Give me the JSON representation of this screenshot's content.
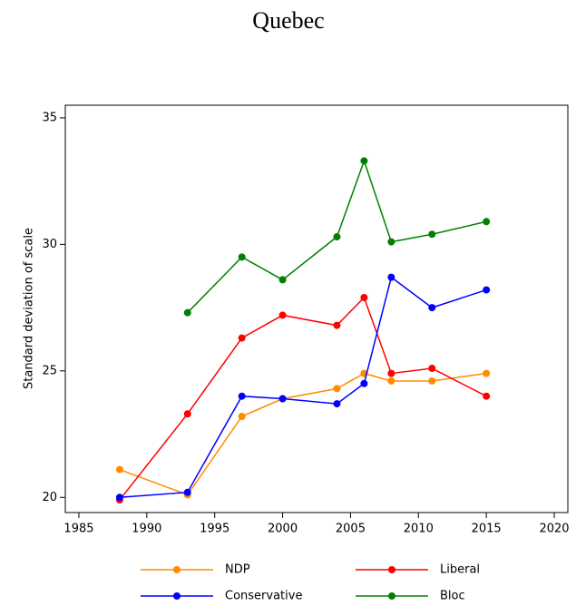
{
  "chart_data": {
    "type": "line",
    "title": "Quebec",
    "y_label": "Standard deviation of scale",
    "x": [
      1988,
      1993,
      1997,
      2000,
      2004,
      2006,
      2008,
      2011,
      2015
    ],
    "series": [
      {
        "name": "NDP",
        "color": "#ff8c00",
        "values": [
          21.1,
          20.1,
          23.2,
          23.9,
          24.3,
          24.9,
          24.6,
          24.6,
          24.9
        ]
      },
      {
        "name": "Liberal",
        "color": "#ff0000",
        "values": [
          19.9,
          23.3,
          26.3,
          27.2,
          26.8,
          27.9,
          24.9,
          25.1,
          24.0
        ]
      },
      {
        "name": "Conservative",
        "color": "#0000ff",
        "values": [
          20.0,
          20.2,
          24.0,
          23.9,
          23.7,
          24.5,
          28.7,
          27.5,
          28.2
        ]
      },
      {
        "name": "Bloc",
        "color": "#008000",
        "values": [
          null,
          27.3,
          29.5,
          28.6,
          30.3,
          33.3,
          30.1,
          30.4,
          30.9
        ]
      }
    ],
    "xlim": [
      1984,
      2021
    ],
    "xticks": [
      1985,
      1990,
      1995,
      2000,
      2005,
      2010,
      2015,
      2020
    ],
    "ylim": [
      19.4,
      35.5
    ],
    "yticks": [
      20,
      25,
      30,
      35
    ],
    "grid": false
  }
}
